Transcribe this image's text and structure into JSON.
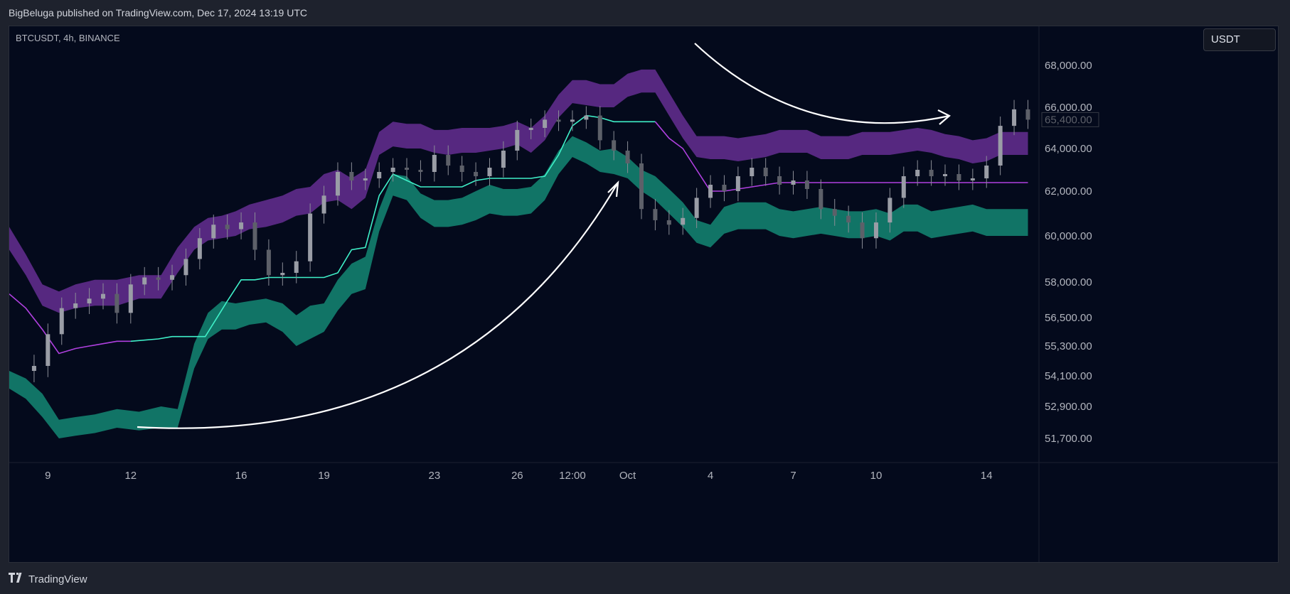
{
  "header": {
    "published": "BigBeluga published on TradingView.com, Dec 17, 2024 13:19 UTC"
  },
  "chart": {
    "symbol": "BTCUSDT, 4h, BINANCE",
    "currency": "USDT"
  },
  "footer": {
    "brand": "TradingView",
    "logo_icon": "tradingview-logo-icon"
  },
  "colors": {
    "background": "#040a1c",
    "purple_band": "#5b2a86",
    "teal_band": "#127a6a",
    "purple_line": "#b040e0",
    "teal_line": "#3ff0c8",
    "candle": "#8a8d96",
    "arrow": "#ffffff"
  },
  "chart_data": {
    "type": "candlestick",
    "y_ticks": [
      "68,000.00",
      "66,000.00",
      "64,000.00",
      "62,000.00",
      "60,000.00",
      "58,000.00",
      "56,500.00",
      "55,300.00",
      "54,100.00",
      "52,900.00",
      "51,700.00"
    ],
    "y_tick_values": [
      68000,
      66000,
      64000,
      62000,
      60000,
      58000,
      56500,
      55300,
      54100,
      52900,
      51700
    ],
    "ylim": [
      50900,
      69200
    ],
    "x_ticks": [
      "9",
      "12",
      "16",
      "19",
      "23",
      "26",
      "12:00",
      "Oct",
      "4",
      "7",
      "10",
      "14"
    ],
    "x_tick_values": [
      0.5,
      3.5,
      7.5,
      10.5,
      14.5,
      17.5,
      19.5,
      21.5,
      24.5,
      27.5,
      30.5,
      34.5
    ],
    "xlim": [
      -0.9,
      36.4
    ],
    "last_price_label": "65,400.00",
    "last_price": 65400,
    "price_series": {
      "x": [
        -0.9,
        0,
        0.5,
        1,
        1.5,
        2,
        2.5,
        3,
        3.5,
        4,
        4.5,
        5,
        5.5,
        6,
        6.5,
        7,
        7.5,
        8,
        8.5,
        9,
        9.5,
        10,
        10.5,
        11,
        11.5,
        12,
        12.5,
        13,
        13.5,
        14,
        14.5,
        15,
        15.5,
        16,
        16.5,
        17,
        17.5,
        18,
        18.5,
        19,
        19.5,
        20,
        20.5,
        21,
        21.5,
        22,
        22.5,
        23,
        23.5,
        24,
        24.5,
        25,
        25.5,
        26,
        26.5,
        27,
        27.5,
        28,
        28.5,
        29,
        29.5,
        30,
        30.5,
        31,
        31.5,
        32,
        32.5,
        33,
        33.5,
        34,
        34.5,
        35,
        35.5,
        36
      ],
      "close": [
        54300,
        54500,
        55800,
        56900,
        57100,
        57300,
        57500,
        56700,
        57900,
        58200,
        58100,
        58300,
        59000,
        59900,
        60500,
        60300,
        60600,
        59400,
        58300,
        58400,
        58900,
        61000,
        61800,
        62900,
        62500,
        62600,
        62900,
        63100,
        63000,
        62900,
        63700,
        63200,
        62900,
        62700,
        63100,
        63900,
        64900,
        65000,
        65400,
        65300,
        65400,
        65600,
        64400,
        63900,
        63300,
        61200,
        60700,
        60500,
        60800,
        61700,
        62300,
        62000,
        62700,
        63100,
        62700,
        62300,
        62500,
        62100,
        61200,
        60900,
        60600,
        59900,
        60600,
        61700,
        62700,
        63000,
        62700,
        62800,
        62500,
        62600,
        63200,
        65100,
        65900,
        65400
      ]
    },
    "series": [
      {
        "x": [
          -0.9,
          -0.3,
          0.3,
          0.9,
          1.5,
          2.2,
          3,
          3.8,
          4.6,
          5.2,
          5.8,
          6.3,
          6.8,
          7.3,
          7.8,
          8.4,
          9,
          9.5,
          10,
          10.5,
          11,
          11.5,
          12,
          12.5,
          13,
          13.5,
          14,
          14.5,
          15,
          15.5,
          16,
          16.5,
          17,
          17.5,
          18,
          18.5,
          19,
          19.5,
          20,
          20.5,
          21,
          21.5,
          22,
          22.5,
          23,
          23.5,
          24,
          24.5,
          25,
          25.5,
          26,
          26.5,
          27,
          27.5,
          28,
          28.5,
          29,
          29.5,
          30,
          30.5,
          31,
          31.5,
          32,
          32.5,
          33,
          33.5,
          34,
          34.5,
          35,
          35.5,
          36
        ],
        "upper": [
          60400,
          59200,
          57900,
          57600,
          57900,
          58100,
          58100,
          58300,
          58300,
          59500,
          60400,
          60800,
          60900,
          61100,
          61400,
          61600,
          61800,
          62100,
          62200,
          62800,
          63000,
          62600,
          63000,
          64800,
          65300,
          65200,
          65200,
          64900,
          64900,
          65000,
          65000,
          65000,
          65100,
          65300,
          65000,
          65600,
          66600,
          67300,
          67300,
          67100,
          67100,
          67600,
          67800,
          67800,
          66700,
          65600,
          64600,
          64600,
          64600,
          64500,
          64600,
          64700,
          64900,
          64900,
          64900,
          64600,
          64600,
          64600,
          64800,
          64800,
          64800,
          64900,
          65000,
          64900,
          64700,
          64600,
          64400,
          64500,
          64800,
          64800,
          64800
        ],
        "lower": [
          59400,
          58300,
          57000,
          56700,
          56900,
          57000,
          57000,
          57300,
          57300,
          58400,
          59400,
          59800,
          59900,
          60000,
          60300,
          60400,
          60600,
          60900,
          61000,
          61500,
          61600,
          61200,
          61700,
          63700,
          64100,
          64000,
          64000,
          63800,
          63700,
          63800,
          63800,
          63900,
          64000,
          64200,
          63800,
          64400,
          65500,
          66200,
          66100,
          66000,
          66000,
          66500,
          66700,
          66700,
          65600,
          64500,
          63600,
          63500,
          63500,
          63400,
          63500,
          63600,
          63800,
          63800,
          63800,
          63500,
          63500,
          63500,
          63700,
          63700,
          63700,
          63800,
          63900,
          63800,
          63600,
          63500,
          63300,
          63400,
          63700,
          63700,
          63700
        ],
        "name": "upper_band"
      },
      {
        "x": [
          -0.9,
          -0.3,
          0.3,
          0.9,
          1.5,
          2.2,
          3,
          3.8,
          4.6,
          5.2,
          5.8,
          6.3,
          6.8,
          7.3,
          7.8,
          8.4,
          9,
          9.5,
          10,
          10.5,
          11,
          11.5,
          12,
          12.5,
          13,
          13.5,
          14,
          14.5,
          15,
          15.5,
          16,
          16.5,
          17,
          17.5,
          18,
          18.5,
          19,
          19.5,
          20,
          20.5,
          21,
          21.5,
          22,
          22.5,
          23,
          23.5,
          24,
          24.5,
          25,
          25.5,
          26,
          26.5,
          27,
          27.5,
          28,
          28.5,
          29,
          29.5,
          30,
          30.5,
          31,
          31.5,
          32,
          32.5,
          33,
          33.5,
          34,
          34.5,
          35,
          35.5,
          36
        ],
        "upper": [
          54300,
          54000,
          53400,
          52400,
          52500,
          52600,
          52800,
          52700,
          52900,
          52800,
          55400,
          56700,
          57200,
          57100,
          57200,
          57300,
          57100,
          56600,
          57000,
          57100,
          58100,
          58800,
          59100,
          61200,
          62800,
          62700,
          61900,
          61600,
          61600,
          61700,
          62000,
          62300,
          62100,
          62100,
          62200,
          62800,
          63900,
          64600,
          64300,
          63900,
          64000,
          63600,
          63000,
          62700,
          62100,
          61500,
          60700,
          60500,
          61300,
          61500,
          61500,
          61500,
          61200,
          61100,
          61200,
          61300,
          61200,
          61100,
          61100,
          61200,
          61000,
          61400,
          61400,
          61100,
          61200,
          61300,
          61400,
          61200,
          61200,
          61200,
          61200
        ],
        "lower": [
          53600,
          53200,
          52500,
          51700,
          51800,
          51900,
          52100,
          52000,
          52100,
          52100,
          54400,
          55600,
          56000,
          56000,
          56200,
          56300,
          55900,
          55300,
          55600,
          55900,
          56800,
          57500,
          57700,
          60200,
          61800,
          61600,
          60800,
          60400,
          60400,
          60500,
          60700,
          61000,
          60900,
          60900,
          61000,
          61600,
          62800,
          63600,
          63300,
          62900,
          62800,
          62600,
          62000,
          61600,
          61000,
          60400,
          59700,
          59500,
          60100,
          60300,
          60300,
          60300,
          60000,
          59900,
          60000,
          60100,
          60000,
          59900,
          59900,
          60000,
          59800,
          60200,
          60200,
          59900,
          60000,
          60100,
          60200,
          60000,
          60000,
          60000,
          60000
        ],
        "name": "lower_band"
      },
      {
        "x": [
          -0.9,
          -0.3,
          0.3,
          0.9,
          1.5,
          2,
          2.5,
          3,
          3.5
        ],
        "values": [
          57500,
          56900,
          56000,
          55000,
          55200,
          55300,
          55400,
          55500,
          55500
        ],
        "name": "purple_line_left"
      },
      {
        "x": [
          3.5,
          4.5,
          5,
          5.5,
          6.2,
          7,
          7.5,
          8,
          8.5,
          9,
          9.5,
          10,
          10.5,
          11,
          11.5,
          12,
          12.5,
          13,
          13.5,
          14,
          14.5,
          15,
          15.5,
          16,
          16.5,
          17,
          17.5,
          18,
          18.5,
          19,
          19.5,
          20,
          20.5,
          21,
          21.5,
          22,
          22.5
        ],
        "values": [
          55500,
          55600,
          55700,
          55700,
          55700,
          57200,
          58100,
          58100,
          58200,
          58200,
          58200,
          58200,
          58200,
          58400,
          59400,
          59500,
          61800,
          62800,
          62500,
          62200,
          62200,
          62200,
          62200,
          62500,
          62600,
          62600,
          62600,
          62600,
          62700,
          63700,
          65100,
          65600,
          65500,
          65300,
          65300,
          65300,
          65300
        ],
        "name": "teal_line"
      },
      {
        "x": [
          22.5,
          23,
          23.5,
          24,
          24.5,
          25,
          25.5,
          26,
          26.5,
          27,
          27.5,
          28,
          28.5,
          29,
          29.5,
          30,
          30.5,
          31,
          31.5,
          32,
          32.5,
          33,
          33.5,
          34,
          34.5,
          35,
          35.5,
          36
        ],
        "values": [
          65300,
          64500,
          64000,
          63000,
          62000,
          62000,
          62100,
          62200,
          62300,
          62400,
          62400,
          62400,
          62400,
          62400,
          62400,
          62400,
          62400,
          62400,
          62400,
          62400,
          62400,
          62400,
          62400,
          62400,
          62400,
          62400,
          62400,
          62400
        ],
        "name": "purple_line_right"
      }
    ],
    "annotations": [
      "arrow-curved-up",
      "arrow-curved-right"
    ]
  }
}
